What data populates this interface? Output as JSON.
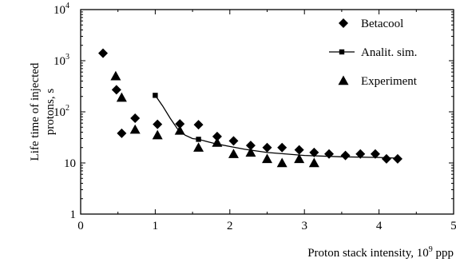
{
  "chart_data": {
    "type": "scatter",
    "xlabel": "Proton stack intensity, 10",
    "xlabel_sup": "9",
    "xlabel_unit": " ppp",
    "ylabel_line1": "Life time of injected",
    "ylabel_line2": "protons, s",
    "xlim": [
      0,
      5
    ],
    "ylim": [
      1,
      10000
    ],
    "y_scale": "log",
    "x_ticks": [
      0,
      1,
      2,
      3,
      4,
      5
    ],
    "x_tick_labels": [
      "0",
      "1",
      "2",
      "3",
      "4",
      "5"
    ],
    "y_ticks": [
      1,
      10,
      100,
      1000,
      10000
    ],
    "y_tick_labels": [
      {
        "base": "1",
        "exp": ""
      },
      {
        "base": "10",
        "exp": ""
      },
      {
        "base": "10",
        "exp": "2"
      },
      {
        "base": "10",
        "exp": "3"
      },
      {
        "base": "10",
        "exp": "4"
      }
    ],
    "grid": false,
    "legend_position": "top-right",
    "series": [
      {
        "name": "Betacool",
        "marker": "diamond",
        "line": false,
        "x": [
          0.3,
          0.48,
          0.55,
          0.73,
          1.03,
          1.33,
          1.58,
          1.83,
          2.05,
          2.28,
          2.5,
          2.7,
          2.93,
          3.13,
          3.33,
          3.55,
          3.75,
          3.95,
          4.1,
          4.25
        ],
        "y": [
          1400,
          270,
          38,
          75,
          57,
          58,
          56,
          33,
          27,
          22,
          20,
          20,
          18,
          16,
          15,
          14,
          15,
          15,
          12,
          12
        ]
      },
      {
        "name": "Analit. sim.",
        "marker": "square",
        "line": true,
        "x": [
          1.0,
          1.1,
          1.2,
          1.3,
          1.4,
          1.5,
          1.58,
          1.7,
          1.8,
          2.0,
          2.2,
          2.5,
          3.0,
          3.5,
          4.0,
          4.25
        ],
        "y": [
          210,
          130,
          75,
          46,
          35,
          30,
          29,
          26,
          24,
          21,
          18.5,
          16,
          14,
          13.2,
          12.8,
          12.4
        ]
      },
      {
        "name": "Experiment",
        "marker": "triangle",
        "line": false,
        "x": [
          0.47,
          0.55,
          0.73,
          1.03,
          1.33,
          1.58,
          1.83,
          2.05,
          2.28,
          2.5,
          2.7,
          2.93,
          3.13
        ],
        "y": [
          500,
          190,
          45,
          35,
          43,
          20,
          25,
          15,
          16,
          12,
          10,
          12,
          10
        ]
      }
    ]
  }
}
